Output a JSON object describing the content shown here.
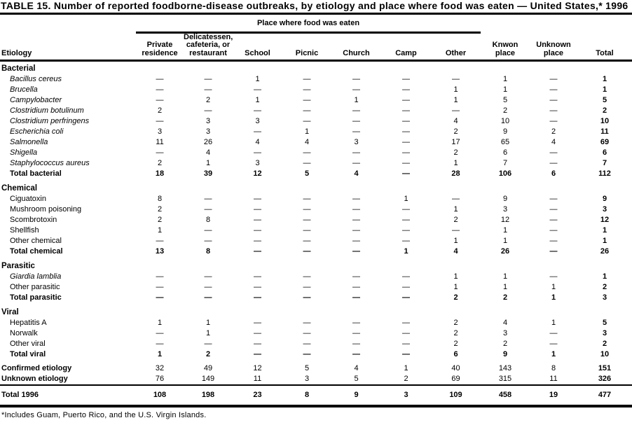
{
  "title": "TABLE 15. Number of reported foodborne-disease outbreaks, by etiology and place where food was eaten — United States,* 1996",
  "table": {
    "group_header": "Place where food was eaten",
    "etiology_header": "Etiology",
    "columns": [
      "Private\nresidence",
      "Delicatessen,\ncafeteria, or\nrestaurant",
      "School",
      "Picnic",
      "Church",
      "Camp",
      "Other",
      "Knwon\nplace",
      "Unknown\nplace",
      "Total"
    ]
  },
  "sections": [
    {
      "name": "Bacterial",
      "rows": [
        {
          "label": "Bacillus cereus",
          "italic": true,
          "values": [
            "—",
            "—",
            "1",
            "—",
            "—",
            "—",
            "—",
            "1",
            "—",
            "1"
          ]
        },
        {
          "label": "Brucella",
          "italic": true,
          "values": [
            "—",
            "—",
            "—",
            "—",
            "—",
            "—",
            "1",
            "1",
            "—",
            "1"
          ]
        },
        {
          "label": "Campylobacter",
          "italic": true,
          "values": [
            "—",
            "2",
            "1",
            "—",
            "1",
            "—",
            "1",
            "5",
            "—",
            "5"
          ]
        },
        {
          "label": "Clostridium botulinum",
          "italic": true,
          "values": [
            "2",
            "—",
            "—",
            "—",
            "—",
            "—",
            "—",
            "2",
            "—",
            "2"
          ]
        },
        {
          "label": "Clostridium perfringens",
          "italic": true,
          "values": [
            "—",
            "3",
            "3",
            "—",
            "—",
            "—",
            "4",
            "10",
            "—",
            "10"
          ]
        },
        {
          "label": "Escherichia coli",
          "italic": true,
          "values": [
            "3",
            "3",
            "—",
            "1",
            "—",
            "—",
            "2",
            "9",
            "2",
            "11"
          ]
        },
        {
          "label": "Salmonella",
          "italic": true,
          "values": [
            "11",
            "26",
            "4",
            "4",
            "3",
            "—",
            "17",
            "65",
            "4",
            "69"
          ]
        },
        {
          "label": "Shigella",
          "italic": true,
          "values": [
            "—",
            "4",
            "—",
            "—",
            "—",
            "—",
            "2",
            "6",
            "—",
            "6"
          ]
        },
        {
          "label": "Staphylococcus aureus",
          "italic": true,
          "values": [
            "2",
            "1",
            "3",
            "—",
            "—",
            "—",
            "1",
            "7",
            "—",
            "7"
          ]
        }
      ],
      "total": {
        "label": "Total bacterial",
        "values": [
          "18",
          "39",
          "12",
          "5",
          "4",
          "—",
          "28",
          "106",
          "6",
          "112"
        ]
      }
    },
    {
      "name": "Chemical",
      "rows": [
        {
          "label": "Ciguatoxin",
          "italic": false,
          "values": [
            "8",
            "—",
            "—",
            "—",
            "—",
            "1",
            "—",
            "9",
            "—",
            "9"
          ]
        },
        {
          "label": "Mushroom poisoning",
          "italic": false,
          "values": [
            "2",
            "—",
            "—",
            "—",
            "—",
            "—",
            "1",
            "3",
            "—",
            "3"
          ]
        },
        {
          "label": "Scombrotoxin",
          "italic": false,
          "values": [
            "2",
            "8",
            "—",
            "—",
            "—",
            "—",
            "2",
            "12",
            "—",
            "12"
          ]
        },
        {
          "label": "Shellfish",
          "italic": false,
          "values": [
            "1",
            "—",
            "—",
            "—",
            "—",
            "—",
            "—",
            "1",
            "—",
            "1"
          ]
        },
        {
          "label": "Other chemical",
          "italic": false,
          "values": [
            "—",
            "—",
            "—",
            "—",
            "—",
            "—",
            "1",
            "1",
            "—",
            "1"
          ]
        }
      ],
      "total": {
        "label": "Total chemical",
        "values": [
          "13",
          "8",
          "—",
          "—",
          "—",
          "1",
          "4",
          "26",
          "—",
          "26"
        ]
      }
    },
    {
      "name": "Parasitic",
      "rows": [
        {
          "label": "Giardia lamblia",
          "italic": true,
          "values": [
            "—",
            "—",
            "—",
            "—",
            "—",
            "—",
            "1",
            "1",
            "—",
            "1"
          ]
        },
        {
          "label": "Other parasitic",
          "italic": false,
          "values": [
            "—",
            "—",
            "—",
            "—",
            "—",
            "—",
            "1",
            "1",
            "1",
            "2"
          ]
        }
      ],
      "total": {
        "label": "Total parasitic",
        "values": [
          "—",
          "—",
          "—",
          "—",
          "—",
          "—",
          "2",
          "2",
          "1",
          "3"
        ]
      }
    },
    {
      "name": "Viral",
      "rows": [
        {
          "label": "Hepatitis A",
          "italic": false,
          "values": [
            "1",
            "1",
            "—",
            "—",
            "—",
            "—",
            "2",
            "4",
            "1",
            "5"
          ]
        },
        {
          "label": "Norwalk",
          "italic": false,
          "values": [
            "—",
            "1",
            "—",
            "—",
            "—",
            "—",
            "2",
            "3",
            "—",
            "3"
          ]
        },
        {
          "label": "Other viral",
          "italic": false,
          "values": [
            "—",
            "—",
            "—",
            "—",
            "—",
            "—",
            "2",
            "2",
            "—",
            "2"
          ]
        }
      ],
      "total": {
        "label": "Total viral",
        "values": [
          "1",
          "2",
          "—",
          "—",
          "—",
          "—",
          "6",
          "9",
          "1",
          "10"
        ]
      }
    }
  ],
  "summary_rows": [
    {
      "label": "Confirmed etiology",
      "values": [
        "32",
        "49",
        "12",
        "5",
        "4",
        "1",
        "40",
        "143",
        "8",
        "151"
      ]
    },
    {
      "label": "Unknown etiology",
      "values": [
        "76",
        "149",
        "11",
        "3",
        "5",
        "2",
        "69",
        "315",
        "11",
        "326"
      ]
    }
  ],
  "grand_total": {
    "label": "Total 1996",
    "values": [
      "108",
      "198",
      "23",
      "8",
      "9",
      "3",
      "109",
      "458",
      "19",
      "477"
    ]
  },
  "footnote": "*Includes Guam, Puerto Rico, and the U.S. Virgin Islands."
}
